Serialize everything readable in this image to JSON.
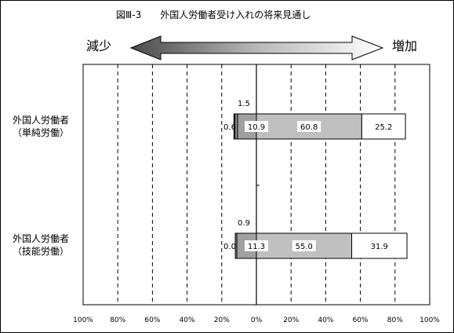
{
  "title": "図Ⅲ-3　　外国人労働者受け入れの将来見通し",
  "direction": {
    "decrease": "減少",
    "increase": "増加"
  },
  "chart_data": {
    "type": "bar",
    "stacked": true,
    "orientation": "horizontal",
    "categories": [
      "外国人労働者\n（単純労働）",
      "外国人労働者\n（技能労働）"
    ],
    "category_lines": [
      [
        "外国人労働者",
        "（単純労働）"
      ],
      [
        "外国人労働者",
        "（技能労働）"
      ]
    ],
    "series": [
      {
        "values": [
          -0.6,
          0.0
        ],
        "labels": [
          "0.6",
          "0.0"
        ],
        "color": "#707070"
      },
      {
        "values": [
          -1.5,
          -0.9
        ],
        "labels": [
          "1.5",
          "0.9"
        ],
        "color": "#909090"
      },
      {
        "values": [
          -10.9,
          -11.3
        ],
        "labels": [
          "10.9",
          "11.3"
        ],
        "color": "#a0a0a0"
      },
      {
        "values": [
          60.8,
          55.0
        ],
        "labels": [
          "60.8",
          "55.0"
        ],
        "color": "#c0c0c0"
      },
      {
        "values": [
          25.2,
          31.9
        ],
        "labels": [
          "25.2",
          "31.9"
        ],
        "color": "#ffffff"
      }
    ],
    "xlim": [
      -100,
      100
    ],
    "xticks": [
      -100,
      -80,
      -60,
      -40,
      -20,
      0,
      20,
      40,
      60,
      80,
      100
    ],
    "xtick_labels": [
      "100%",
      "80%",
      "60%",
      "40%",
      "20%",
      "0%",
      "20%",
      "40%",
      "60%",
      "80%",
      "100%"
    ],
    "grid": "vertical-dashed"
  }
}
